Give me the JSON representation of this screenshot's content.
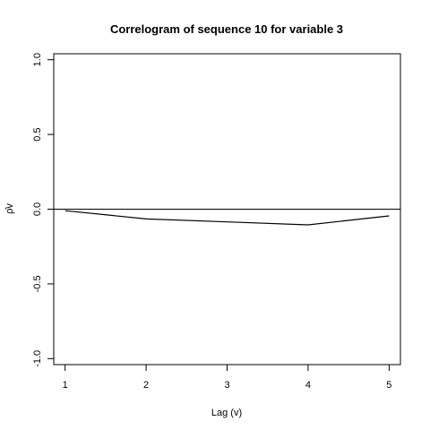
{
  "chart_data": {
    "type": "line",
    "title": "Correlogram of sequence  10  for variable  3",
    "xlabel": "Lag (v)",
    "ylabel": "ρ̂v",
    "x": [
      1,
      2,
      3,
      4,
      5
    ],
    "xticks": [
      1,
      2,
      3,
      4,
      5
    ],
    "yticks": [
      -1.0,
      -0.5,
      0.0,
      0.5,
      1.0
    ],
    "ytick_labels": [
      "-1.0",
      "-0.5",
      "0.0",
      "0.5",
      "1.0"
    ],
    "xlim": [
      0.86,
      5.14
    ],
    "ylim": [
      -1.04,
      1.04
    ],
    "grid": false,
    "reference_line": 0,
    "series": [
      {
        "values": [
          -0.01,
          -0.065,
          -0.085,
          -0.105,
          -0.045
        ],
        "color": "#000000"
      }
    ]
  }
}
